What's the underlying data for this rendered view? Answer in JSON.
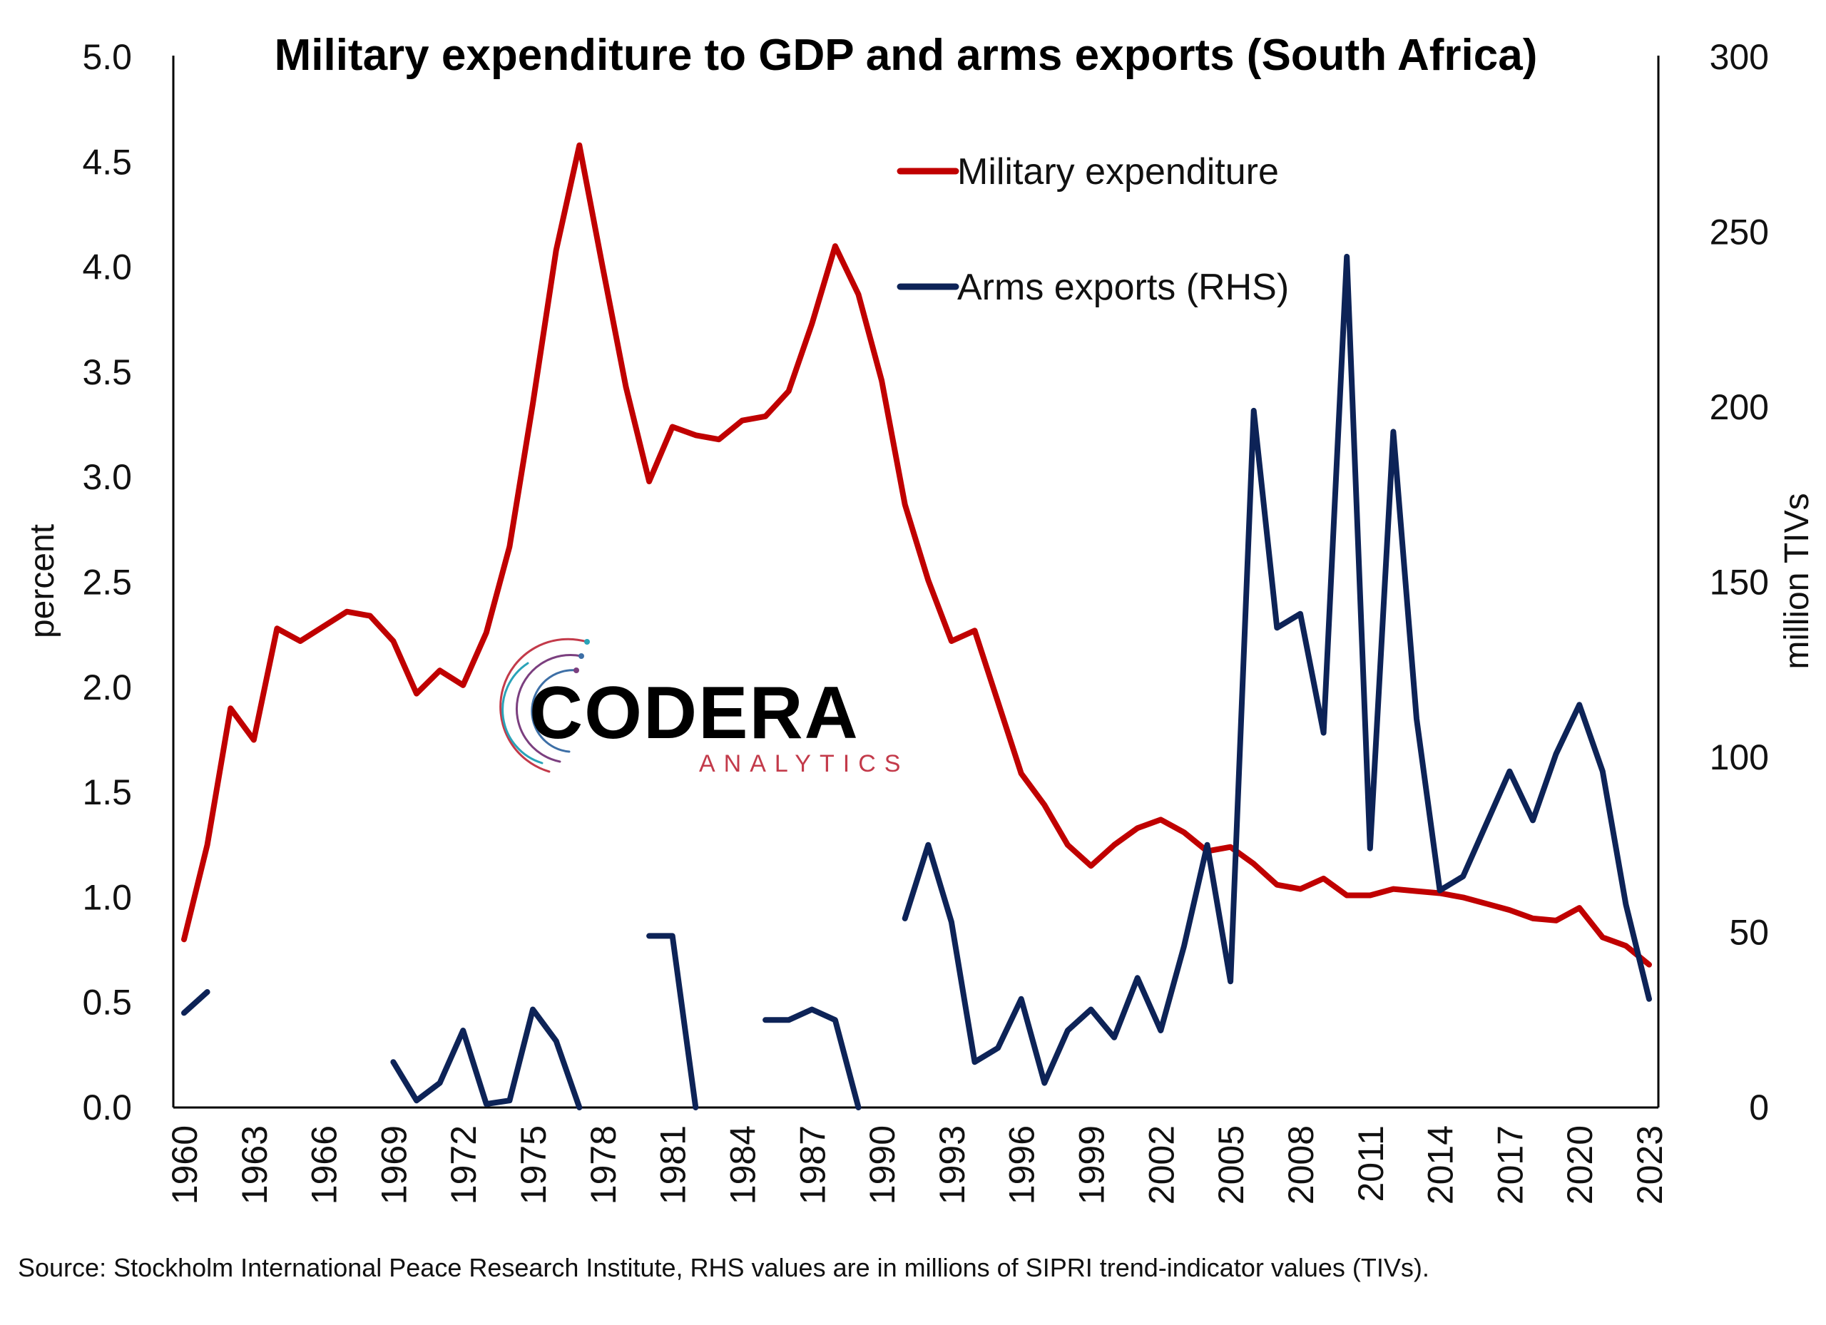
{
  "chart_data": {
    "type": "line",
    "title": "Military expenditure to GDP and arms exports (South Africa)",
    "ylabel": "percent",
    "y2label": "million TIVs",
    "ylim": [
      0,
      5.0
    ],
    "y2lim": [
      0,
      300
    ],
    "yticks": [
      "0.0",
      "0.5",
      "1.0",
      "1.5",
      "2.0",
      "2.5",
      "3.0",
      "3.5",
      "4.0",
      "4.5",
      "5.0"
    ],
    "y2ticks": [
      "0",
      "50",
      "100",
      "150",
      "200",
      "250",
      "300"
    ],
    "xtick_labels": [
      "1960",
      "1963",
      "1966",
      "1969",
      "1972",
      "1975",
      "1978",
      "1981",
      "1984",
      "1987",
      "1990",
      "1993",
      "1996",
      "1999",
      "2002",
      "2005",
      "2008",
      "2011",
      "2014",
      "2017",
      "2020",
      "2023"
    ],
    "x": [
      1960,
      1961,
      1962,
      1963,
      1964,
      1965,
      1966,
      1967,
      1968,
      1969,
      1970,
      1971,
      1972,
      1973,
      1974,
      1975,
      1976,
      1977,
      1978,
      1979,
      1980,
      1981,
      1982,
      1983,
      1984,
      1985,
      1986,
      1987,
      1988,
      1989,
      1990,
      1991,
      1992,
      1993,
      1994,
      1995,
      1996,
      1997,
      1998,
      1999,
      2000,
      2001,
      2002,
      2003,
      2004,
      2005,
      2006,
      2007,
      2008,
      2009,
      2010,
      2011,
      2012,
      2013,
      2014,
      2015,
      2016,
      2017,
      2018,
      2019,
      2020,
      2021,
      2022,
      2023
    ],
    "legend_position": "top-right",
    "series": [
      {
        "name": "Military expenditure",
        "axis": "left",
        "color": "#c00000",
        "values": [
          0.8,
          1.25,
          1.9,
          1.75,
          2.28,
          2.22,
          2.29,
          2.36,
          2.34,
          2.22,
          1.97,
          2.08,
          2.01,
          2.26,
          2.67,
          3.35,
          4.08,
          4.58,
          4.0,
          3.43,
          2.98,
          3.24,
          3.2,
          3.18,
          3.27,
          3.29,
          3.41,
          3.73,
          4.1,
          3.87,
          3.46,
          2.87,
          2.51,
          2.22,
          2.27,
          1.93,
          1.59,
          1.44,
          1.25,
          1.15,
          1.25,
          1.33,
          1.37,
          1.31,
          1.22,
          1.24,
          1.16,
          1.06,
          1.04,
          1.09,
          1.01,
          1.01,
          1.04,
          1.03,
          1.02,
          1.0,
          0.97,
          0.94,
          0.9,
          0.89,
          0.95,
          0.81,
          0.77,
          0.68
        ]
      },
      {
        "name": "Arms exports (RHS)",
        "axis": "right",
        "color": "#0d2357",
        "values": [
          27,
          33,
          null,
          null,
          null,
          null,
          null,
          null,
          null,
          13,
          2,
          7,
          22,
          1,
          2,
          28,
          19,
          0,
          null,
          null,
          49,
          49,
          0,
          null,
          null,
          25,
          25,
          28,
          25,
          0,
          null,
          54,
          75,
          53,
          13,
          17,
          31,
          7,
          22,
          28,
          20,
          37,
          22,
          46,
          75,
          36,
          199,
          137,
          141,
          107,
          243,
          74,
          193,
          111,
          62,
          66,
          81,
          96,
          82,
          101,
          115,
          96,
          58,
          31
        ]
      }
    ]
  },
  "logo": {
    "name": "CODERA",
    "sub": "ANALYTICS"
  },
  "source_note": "Source: Stockholm International Peace Research Institute, RHS values are in millions of SIPRI trend-indicator values (TIVs)."
}
